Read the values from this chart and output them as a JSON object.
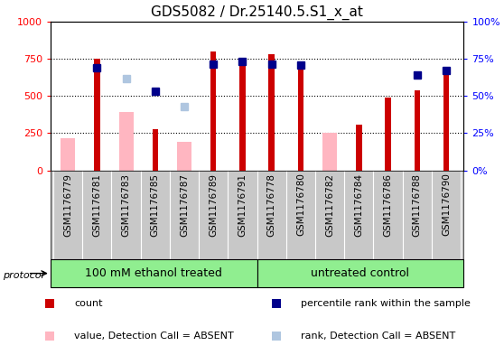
{
  "title": "GDS5082 / Dr.25140.5.S1_x_at",
  "samples": [
    "GSM1176779",
    "GSM1176781",
    "GSM1176783",
    "GSM1176785",
    "GSM1176787",
    "GSM1176789",
    "GSM1176791",
    "GSM1176778",
    "GSM1176780",
    "GSM1176782",
    "GSM1176784",
    "GSM1176786",
    "GSM1176788",
    "GSM1176790"
  ],
  "count_values": [
    null,
    750,
    null,
    275,
    null,
    800,
    700,
    780,
    700,
    null,
    305,
    490,
    535,
    660
  ],
  "rank_values": [
    null,
    69,
    null,
    53,
    null,
    71,
    73,
    71,
    70.5,
    null,
    null,
    null,
    64,
    67
  ],
  "absent_count": [
    215,
    null,
    390,
    null,
    190,
    null,
    null,
    null,
    null,
    255,
    null,
    null,
    null,
    null
  ],
  "absent_rank": [
    null,
    null,
    61.5,
    null,
    42.5,
    null,
    null,
    null,
    null,
    null,
    null,
    null,
    null,
    null
  ],
  "left_ylim": [
    0,
    1000
  ],
  "right_ylim": [
    0,
    100
  ],
  "left_yticks": [
    0,
    250,
    500,
    750,
    1000
  ],
  "right_yticks": [
    0,
    25,
    50,
    75,
    100
  ],
  "count_color": "#CC0000",
  "rank_color": "#00008B",
  "absent_count_color": "#FFB6C1",
  "absent_rank_color": "#AFC6E0",
  "dotted_lines": [
    250,
    500,
    750
  ],
  "plot_bg_color": "#FFFFFF",
  "tick_label_fontsize": 7.5,
  "title_fontsize": 11,
  "legend_fontsize": 8,
  "group_label_fontsize": 9,
  "protocol_label": "protocol",
  "group1_label": "100 mM ethanol treated",
  "group2_label": "untreated control",
  "group1_count": 7,
  "group2_count": 7,
  "absent_bar_width": 0.5,
  "count_bar_width": 0.2,
  "marker_size": 6
}
